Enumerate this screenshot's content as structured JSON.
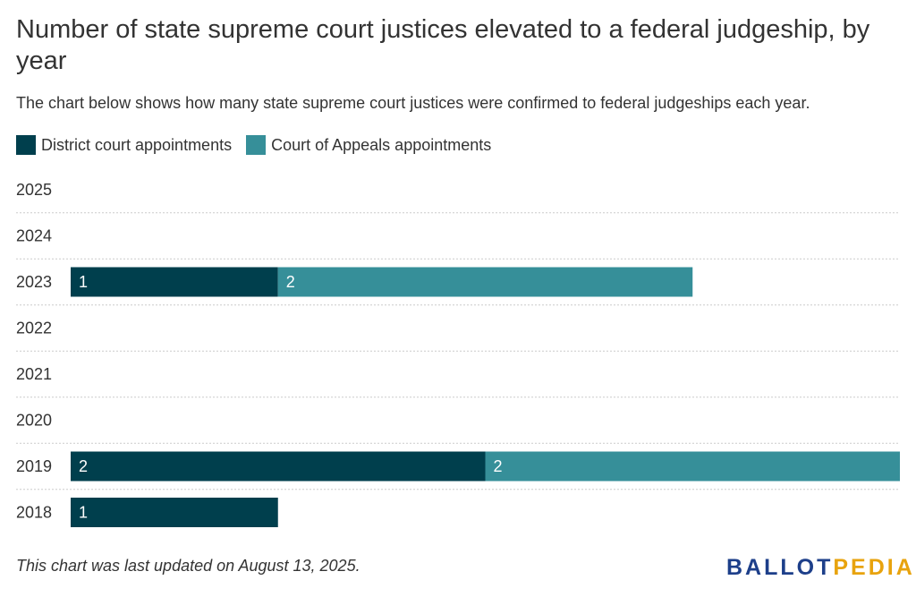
{
  "title": "Number of state supreme court justices elevated to a federal judgeship, by year",
  "subtitle": "The chart below shows how many state supreme court justices were confirmed to federal judgeships each year.",
  "footer_note": "This chart was last updated on August 13, 2025.",
  "logo": {
    "part1": "BALLOT",
    "part2": "PEDIA",
    "color1": "#1d3f8a",
    "color2": "#e8a30e"
  },
  "chart_data": {
    "type": "bar",
    "orientation": "horizontal",
    "stacked": true,
    "categories": [
      "2025",
      "2024",
      "2023",
      "2022",
      "2021",
      "2020",
      "2019",
      "2018"
    ],
    "series": [
      {
        "name": "District court appointments",
        "color": "#003f4d",
        "values": [
          0,
          0,
          1,
          0,
          0,
          0,
          2,
          1
        ]
      },
      {
        "name": "Court of Appeals appointments",
        "color": "#368f99",
        "values": [
          0,
          0,
          2,
          0,
          0,
          0,
          2,
          0
        ]
      }
    ],
    "xlim": [
      0,
      4
    ],
    "data_labels": true,
    "grid": "dotted horizontal separators",
    "legend_position": "top-left"
  }
}
